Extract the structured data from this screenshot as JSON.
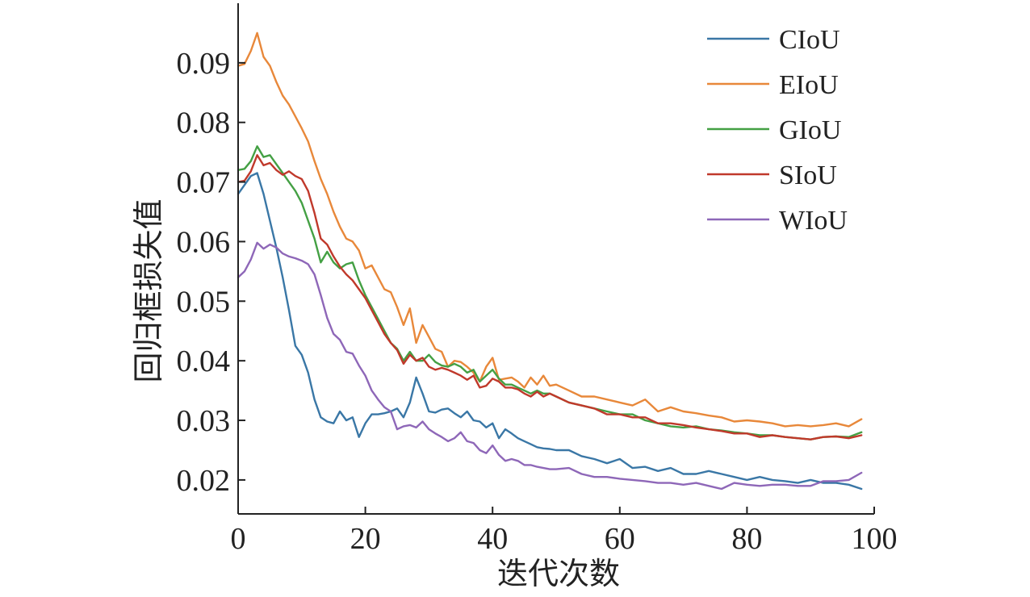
{
  "chart_data": {
    "type": "line",
    "xlabel": "迭代次数",
    "ylabel": "回归框损失值",
    "xlim": [
      0,
      100
    ],
    "ylim": [
      0.0143,
      0.1
    ],
    "x_ticks": [
      0,
      20,
      40,
      60,
      80,
      100
    ],
    "x_tick_labels": [
      "0",
      "20",
      "40",
      "60",
      "80",
      "100"
    ],
    "y_ticks": [
      0.02,
      0.03,
      0.04,
      0.05,
      0.06,
      0.07,
      0.08,
      0.09
    ],
    "y_tick_labels": [
      "0.02",
      "0.03",
      "0.04",
      "0.05",
      "0.06",
      "0.07",
      "0.08",
      "0.09"
    ],
    "grid": false,
    "legend_position": "top-right",
    "series": [
      {
        "name": "CIoU",
        "color": "#3a77a6",
        "x": [
          0,
          1,
          2,
          3,
          4,
          5,
          6,
          7,
          8,
          9,
          10,
          11,
          12,
          13,
          14,
          15,
          16,
          17,
          18,
          19,
          20,
          21,
          22,
          23,
          24,
          25,
          26,
          27,
          28,
          29,
          30,
          31,
          32,
          33,
          34,
          35,
          36,
          37,
          38,
          39,
          40,
          41,
          42,
          43,
          44,
          45,
          46,
          47,
          48,
          49,
          50,
          52,
          54,
          56,
          58,
          60,
          62,
          64,
          66,
          68,
          70,
          72,
          74,
          76,
          78,
          80,
          82,
          84,
          86,
          88,
          90,
          92,
          94,
          96,
          98
        ],
        "values": [
          0.068,
          0.0695,
          0.071,
          0.0715,
          0.068,
          0.0635,
          0.059,
          0.054,
          0.0485,
          0.0425,
          0.041,
          0.038,
          0.0335,
          0.0305,
          0.0298,
          0.0295,
          0.0315,
          0.03,
          0.0305,
          0.0272,
          0.0295,
          0.031,
          0.031,
          0.0312,
          0.0315,
          0.032,
          0.0305,
          0.033,
          0.0372,
          0.0345,
          0.0315,
          0.0313,
          0.0318,
          0.032,
          0.0312,
          0.0305,
          0.0315,
          0.03,
          0.0298,
          0.0288,
          0.0295,
          0.027,
          0.0285,
          0.0278,
          0.027,
          0.0265,
          0.026,
          0.0255,
          0.0253,
          0.0252,
          0.025,
          0.025,
          0.024,
          0.0235,
          0.0228,
          0.0235,
          0.022,
          0.0222,
          0.0215,
          0.022,
          0.021,
          0.021,
          0.0215,
          0.021,
          0.0205,
          0.02,
          0.0205,
          0.02,
          0.0198,
          0.0195,
          0.02,
          0.0195,
          0.0195,
          0.0192,
          0.0185
        ]
      },
      {
        "name": "EIoU",
        "color": "#e8883a",
        "x": [
          0,
          1,
          2,
          3,
          4,
          5,
          6,
          7,
          8,
          9,
          10,
          11,
          12,
          13,
          14,
          15,
          16,
          17,
          18,
          19,
          20,
          21,
          22,
          23,
          24,
          25,
          26,
          27,
          28,
          29,
          30,
          31,
          32,
          33,
          34,
          35,
          36,
          37,
          38,
          39,
          40,
          41,
          42,
          43,
          44,
          45,
          46,
          47,
          48,
          49,
          50,
          52,
          54,
          56,
          58,
          60,
          62,
          64,
          66,
          68,
          70,
          72,
          74,
          76,
          78,
          80,
          82,
          84,
          86,
          88,
          90,
          92,
          94,
          96,
          98
        ],
        "values": [
          0.0895,
          0.0898,
          0.092,
          0.095,
          0.091,
          0.0895,
          0.0868,
          0.0845,
          0.083,
          0.081,
          0.079,
          0.0768,
          0.0735,
          0.0705,
          0.068,
          0.065,
          0.0625,
          0.0605,
          0.06,
          0.0585,
          0.0555,
          0.056,
          0.054,
          0.052,
          0.0515,
          0.049,
          0.046,
          0.0488,
          0.043,
          0.046,
          0.044,
          0.042,
          0.0415,
          0.039,
          0.04,
          0.0398,
          0.039,
          0.038,
          0.0365,
          0.039,
          0.0405,
          0.0368,
          0.037,
          0.0372,
          0.0365,
          0.0355,
          0.0372,
          0.036,
          0.0375,
          0.0358,
          0.036,
          0.035,
          0.034,
          0.034,
          0.0335,
          0.033,
          0.0325,
          0.0335,
          0.0315,
          0.0322,
          0.0315,
          0.0312,
          0.0308,
          0.0305,
          0.0298,
          0.03,
          0.0298,
          0.0295,
          0.029,
          0.0292,
          0.029,
          0.0292,
          0.0295,
          0.029,
          0.0302
        ]
      },
      {
        "name": "GIoU",
        "color": "#44a044",
        "x": [
          0,
          1,
          2,
          3,
          4,
          5,
          6,
          7,
          8,
          9,
          10,
          11,
          12,
          13,
          14,
          15,
          16,
          17,
          18,
          19,
          20,
          21,
          22,
          23,
          24,
          25,
          26,
          27,
          28,
          29,
          30,
          31,
          32,
          33,
          34,
          35,
          36,
          37,
          38,
          39,
          40,
          41,
          42,
          43,
          44,
          45,
          46,
          47,
          48,
          49,
          50,
          52,
          54,
          56,
          58,
          60,
          62,
          64,
          66,
          68,
          70,
          72,
          74,
          76,
          78,
          80,
          82,
          84,
          86,
          88,
          90,
          92,
          94,
          96,
          98
        ],
        "values": [
          0.072,
          0.0722,
          0.0735,
          0.076,
          0.0742,
          0.0745,
          0.073,
          0.0715,
          0.07,
          0.0685,
          0.0665,
          0.0635,
          0.0605,
          0.0565,
          0.0583,
          0.0565,
          0.0555,
          0.0562,
          0.0565,
          0.0535,
          0.051,
          0.049,
          0.047,
          0.045,
          0.043,
          0.042,
          0.04,
          0.0415,
          0.04,
          0.04,
          0.041,
          0.0398,
          0.0392,
          0.039,
          0.0395,
          0.039,
          0.038,
          0.0385,
          0.0365,
          0.0375,
          0.0385,
          0.037,
          0.036,
          0.036,
          0.0355,
          0.035,
          0.0345,
          0.035,
          0.0345,
          0.0345,
          0.034,
          0.033,
          0.0325,
          0.032,
          0.0315,
          0.031,
          0.031,
          0.03,
          0.0295,
          0.029,
          0.0288,
          0.029,
          0.0285,
          0.0283,
          0.028,
          0.0278,
          0.0275,
          0.0275,
          0.0272,
          0.027,
          0.0268,
          0.0272,
          0.0273,
          0.0272,
          0.028
        ]
      },
      {
        "name": "SIoU",
        "color": "#c0392b",
        "x": [
          0,
          1,
          2,
          3,
          4,
          5,
          6,
          7,
          8,
          9,
          10,
          11,
          12,
          13,
          14,
          15,
          16,
          17,
          18,
          19,
          20,
          21,
          22,
          23,
          24,
          25,
          26,
          27,
          28,
          29,
          30,
          31,
          32,
          33,
          34,
          35,
          36,
          37,
          38,
          39,
          40,
          41,
          42,
          43,
          44,
          45,
          46,
          47,
          48,
          49,
          50,
          52,
          54,
          56,
          58,
          60,
          62,
          64,
          66,
          68,
          70,
          72,
          74,
          76,
          78,
          80,
          82,
          84,
          86,
          88,
          90,
          92,
          94,
          96,
          98
        ],
        "values": [
          0.07,
          0.0702,
          0.0718,
          0.0745,
          0.0728,
          0.0732,
          0.072,
          0.0712,
          0.0718,
          0.071,
          0.0705,
          0.0685,
          0.0648,
          0.0605,
          0.0595,
          0.0575,
          0.0558,
          0.0545,
          0.0535,
          0.052,
          0.0505,
          0.0485,
          0.0465,
          0.0445,
          0.043,
          0.0418,
          0.0395,
          0.041,
          0.04,
          0.0405,
          0.039,
          0.0385,
          0.0388,
          0.0385,
          0.038,
          0.0375,
          0.0368,
          0.0375,
          0.0355,
          0.0358,
          0.037,
          0.0365,
          0.0355,
          0.0355,
          0.0352,
          0.0345,
          0.034,
          0.0348,
          0.034,
          0.0345,
          0.034,
          0.033,
          0.0325,
          0.032,
          0.031,
          0.031,
          0.0305,
          0.0305,
          0.0295,
          0.0295,
          0.0292,
          0.0288,
          0.0285,
          0.0282,
          0.0278,
          0.0278,
          0.0272,
          0.0275,
          0.0272,
          0.027,
          0.0268,
          0.0272,
          0.0273,
          0.027,
          0.0275
        ]
      },
      {
        "name": "WIoU",
        "color": "#8e67b8",
        "x": [
          0,
          1,
          2,
          3,
          4,
          5,
          6,
          7,
          8,
          9,
          10,
          11,
          12,
          13,
          14,
          15,
          16,
          17,
          18,
          19,
          20,
          21,
          22,
          23,
          24,
          25,
          26,
          27,
          28,
          29,
          30,
          31,
          32,
          33,
          34,
          35,
          36,
          37,
          38,
          39,
          40,
          41,
          42,
          43,
          44,
          45,
          46,
          47,
          48,
          49,
          50,
          52,
          54,
          56,
          58,
          60,
          62,
          64,
          66,
          68,
          70,
          72,
          74,
          76,
          78,
          80,
          82,
          84,
          86,
          88,
          90,
          92,
          94,
          96,
          98
        ],
        "values": [
          0.054,
          0.055,
          0.057,
          0.0598,
          0.0588,
          0.0595,
          0.059,
          0.058,
          0.0575,
          0.0572,
          0.0568,
          0.0562,
          0.0545,
          0.051,
          0.0472,
          0.0445,
          0.0435,
          0.0415,
          0.0412,
          0.0392,
          0.0375,
          0.035,
          0.0335,
          0.0322,
          0.0315,
          0.0285,
          0.029,
          0.0292,
          0.0288,
          0.0298,
          0.0285,
          0.0278,
          0.0272,
          0.0265,
          0.027,
          0.028,
          0.0265,
          0.0262,
          0.025,
          0.0245,
          0.0258,
          0.0242,
          0.0232,
          0.0235,
          0.0232,
          0.0225,
          0.0225,
          0.0222,
          0.022,
          0.0218,
          0.0218,
          0.022,
          0.021,
          0.0205,
          0.0205,
          0.0202,
          0.02,
          0.0198,
          0.0195,
          0.0195,
          0.0192,
          0.0195,
          0.019,
          0.0185,
          0.0195,
          0.0192,
          0.019,
          0.0192,
          0.0192,
          0.019,
          0.019,
          0.0198,
          0.0198,
          0.02,
          0.0212
        ]
      }
    ]
  }
}
